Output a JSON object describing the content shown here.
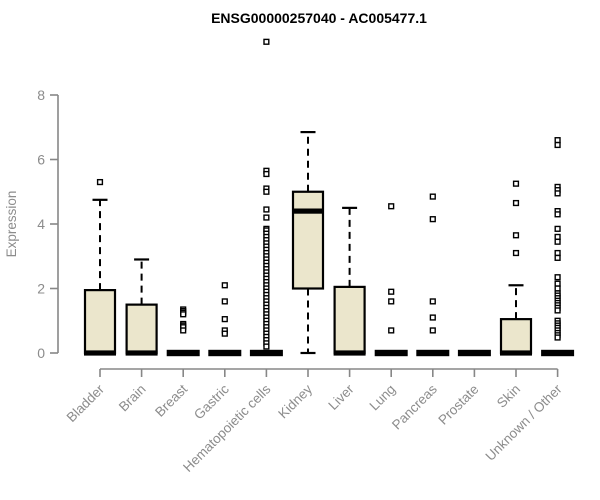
{
  "title": "ENSG00000257040 - AC005477.1",
  "colors": {
    "background": "#FFFFFF",
    "box_fill": "#EBE6CC",
    "box_stroke": "#000000",
    "median": "#000000",
    "outlier_stroke": "#000000",
    "axis_line": "#878787",
    "axis_text": "#8C8C8C",
    "title_text": "#000000"
  },
  "chart_data": {
    "type": "boxplot",
    "title": "ENSG00000257040 - AC005477.1",
    "xlabel": "",
    "ylabel": "Expression",
    "ylim": [
      0,
      8
    ],
    "yticks": [
      0,
      2,
      4,
      6,
      8
    ],
    "grid": false,
    "legend": "none",
    "categories": [
      "Bladder",
      "Brain",
      "Breast",
      "Gastric",
      "Hematopoietic cells",
      "Kidney",
      "Liver",
      "Lung",
      "Pancreas",
      "Prostate",
      "Skin",
      "Unknown / Other"
    ],
    "series": [
      {
        "name": "Bladder",
        "whisker_low": 0,
        "q1": 0,
        "median": 0,
        "q3": 1.95,
        "whisker_high": 4.75,
        "outliers": [
          5.3
        ]
      },
      {
        "name": "Brain",
        "whisker_low": 0,
        "q1": 0,
        "median": 0,
        "q3": 1.5,
        "whisker_high": 2.9,
        "outliers": []
      },
      {
        "name": "Breast",
        "whisker_low": 0,
        "q1": 0,
        "median": 0,
        "q3": 0,
        "whisker_high": 0,
        "outliers": [
          1.35,
          1.3,
          1.25,
          1.2,
          0.9,
          0.85,
          0.8,
          0.7
        ]
      },
      {
        "name": "Gastric",
        "whisker_low": 0,
        "q1": 0,
        "median": 0,
        "q3": 0,
        "whisker_high": 0,
        "outliers": [
          2.1,
          1.6,
          1.05,
          0.7,
          0.6
        ]
      },
      {
        "name": "Hematopoietic cells",
        "whisker_low": 0,
        "q1": 0,
        "median": 0,
        "q3": 0,
        "whisker_high": 0,
        "outliers": [
          9.65,
          5.65,
          5.55,
          5.1,
          5.0,
          4.45,
          4.2,
          3.85,
          3.8,
          3.7,
          3.6,
          3.5,
          3.4,
          3.3,
          3.2,
          3.1,
          3.0,
          2.9,
          2.8,
          2.7,
          2.6,
          2.5,
          2.4,
          2.3,
          2.2,
          2.1,
          2.0,
          1.9,
          1.8,
          1.7,
          1.6,
          1.5,
          1.4,
          1.3,
          1.2,
          1.1,
          1.0,
          0.9,
          0.8,
          0.7,
          0.6,
          0.5,
          0.4,
          0.3,
          0.2
        ]
      },
      {
        "name": "Kidney",
        "whisker_low": 0,
        "q1": 2.0,
        "median": 4.4,
        "q3": 5.0,
        "whisker_high": 6.85,
        "outliers": []
      },
      {
        "name": "Liver",
        "whisker_low": 0,
        "q1": 0,
        "median": 0,
        "q3": 2.05,
        "whisker_high": 4.5,
        "outliers": []
      },
      {
        "name": "Lung",
        "whisker_low": 0,
        "q1": 0,
        "median": 0,
        "q3": 0,
        "whisker_high": 0,
        "outliers": [
          4.55,
          1.9,
          1.6,
          0.7
        ]
      },
      {
        "name": "Pancreas",
        "whisker_low": 0,
        "q1": 0,
        "median": 0,
        "q3": 0,
        "whisker_high": 0,
        "outliers": [
          4.85,
          4.15,
          1.6,
          1.1,
          0.7
        ]
      },
      {
        "name": "Prostate",
        "whisker_low": 0,
        "q1": 0,
        "median": 0,
        "q3": 0,
        "whisker_high": 0,
        "outliers": []
      },
      {
        "name": "Skin",
        "whisker_low": 0,
        "q1": 0,
        "median": 0,
        "q3": 1.05,
        "whisker_high": 2.1,
        "outliers": [
          5.25,
          4.65,
          3.65,
          3.1
        ]
      },
      {
        "name": "Unknown / Other",
        "whisker_low": 0,
        "q1": 0,
        "median": 0,
        "q3": 0,
        "whisker_high": 0,
        "outliers": [
          6.6,
          6.45,
          5.15,
          5.05,
          4.95,
          4.4,
          4.3,
          3.85,
          3.6,
          3.45,
          3.1,
          2.95,
          2.35,
          2.15,
          2.0,
          1.85,
          1.78,
          1.7,
          1.62,
          1.55,
          1.48,
          1.4,
          1.32,
          1.0,
          0.92,
          0.85,
          0.78,
          0.7,
          0.62,
          0.55,
          0.48
        ]
      }
    ]
  }
}
